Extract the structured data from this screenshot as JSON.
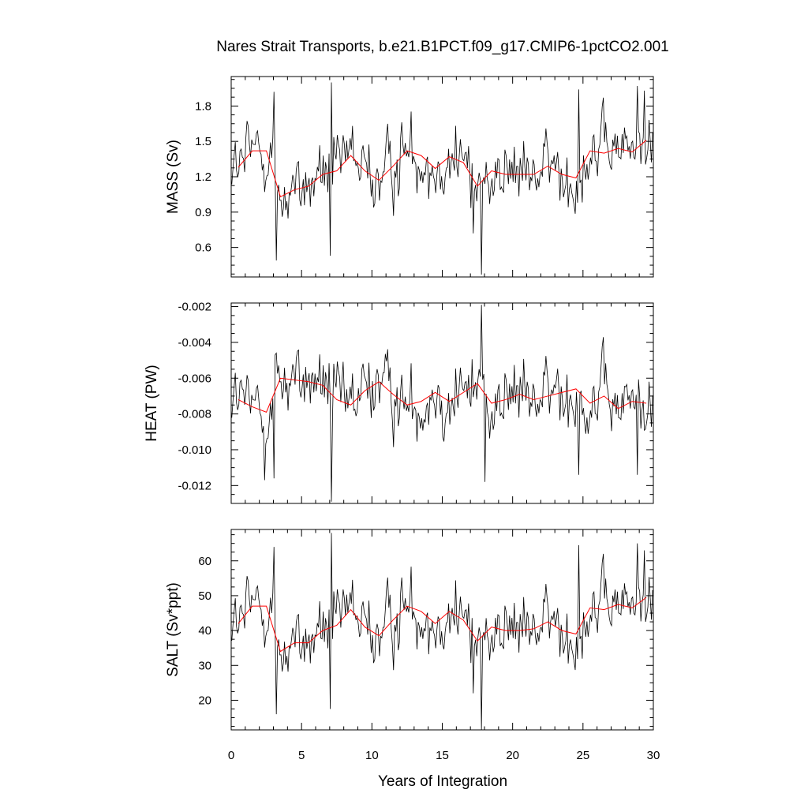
{
  "title": "Nares Strait Transports, b.e21.B1PCT.f09_g17.CMIP6-1pctCO2.001",
  "xlabel": "Years of Integration",
  "colors": {
    "monthly": "#000000",
    "annual": "#ff0000",
    "frame": "#000000"
  },
  "chart_data": [
    {
      "type": "line",
      "name": "mass",
      "ylabel": "MASS (Sv)",
      "xlim": [
        0,
        30
      ],
      "ylim": [
        0.35,
        2.05
      ],
      "xticks": [
        0,
        5,
        10,
        15,
        20,
        25,
        30
      ],
      "yticks": [
        0.6,
        0.9,
        1.2,
        1.5,
        1.8
      ],
      "ytick_labels": [
        "0.6",
        "0.9",
        "1.2",
        "1.5",
        "1.8"
      ],
      "monthly": {
        "start": 0.0417,
        "step": 0.0833,
        "count": 360,
        "mean": 1.28,
        "sd": 0.2,
        "min": 0.37,
        "max": 2.0
      },
      "spikes": [
        [
          3.2,
          0.49
        ],
        [
          3.0,
          1.92
        ],
        [
          7.1,
          2.0
        ],
        [
          7.0,
          0.53
        ],
        [
          17.8,
          0.37
        ],
        [
          17.2,
          0.72
        ],
        [
          24.7,
          1.94
        ],
        [
          28.9,
          1.97
        ],
        [
          29.4,
          1.93
        ]
      ],
      "annual_x": [
        0.5,
        1.5,
        2.5,
        3.5,
        4.5,
        5.5,
        6.5,
        7.5,
        8.5,
        9.5,
        10.5,
        11.5,
        12.5,
        13.5,
        14.5,
        15.5,
        16.5,
        17.5,
        18.5,
        19.5,
        20.5,
        21.5,
        22.5,
        23.5,
        24.5,
        25.5,
        26.5,
        27.5,
        28.5,
        29.5
      ],
      "annual_y": [
        1.28,
        1.42,
        1.42,
        1.03,
        1.09,
        1.12,
        1.22,
        1.25,
        1.38,
        1.25,
        1.17,
        1.29,
        1.42,
        1.38,
        1.27,
        1.37,
        1.32,
        1.12,
        1.25,
        1.22,
        1.22,
        1.22,
        1.29,
        1.22,
        1.19,
        1.42,
        1.4,
        1.44,
        1.41,
        1.51
      ]
    },
    {
      "type": "line",
      "name": "heat",
      "ylabel": "HEAT (PW)",
      "xlim": [
        0,
        30
      ],
      "ylim": [
        -0.013,
        -0.0018
      ],
      "xticks": [
        0,
        5,
        10,
        15,
        20,
        25,
        30
      ],
      "yticks": [
        -0.012,
        -0.01,
        -0.008,
        -0.006,
        -0.004,
        -0.002
      ],
      "ytick_labels": [
        "-0.012",
        "-0.010",
        "-0.008",
        "-0.006",
        "-0.004",
        "-0.002"
      ],
      "monthly": {
        "start": 0.0417,
        "step": 0.0833,
        "count": 360,
        "mean": -0.0071,
        "sd": 0.0014,
        "min": -0.0129,
        "max": -0.0019
      },
      "spikes": [
        [
          7.1,
          -0.0129
        ],
        [
          17.8,
          -0.0019
        ],
        [
          3.0,
          -0.0116
        ],
        [
          2.4,
          -0.0117
        ],
        [
          24.7,
          -0.0114
        ],
        [
          28.9,
          -0.0114
        ],
        [
          18.0,
          -0.0118
        ]
      ],
      "annual_x": [
        0.5,
        1.5,
        2.5,
        3.5,
        4.5,
        5.5,
        6.5,
        7.5,
        8.5,
        9.5,
        10.5,
        11.5,
        12.5,
        13.5,
        14.5,
        15.5,
        16.5,
        17.5,
        18.5,
        19.5,
        20.5,
        21.5,
        22.5,
        23.5,
        24.5,
        25.5,
        26.5,
        27.5,
        28.5,
        29.5
      ],
      "annual_y": [
        -0.0072,
        -0.0076,
        -0.0079,
        -0.006,
        -0.0061,
        -0.0062,
        -0.0064,
        -0.0072,
        -0.0075,
        -0.0067,
        -0.0062,
        -0.0069,
        -0.0075,
        -0.0073,
        -0.0068,
        -0.0073,
        -0.0068,
        -0.0063,
        -0.0074,
        -0.0072,
        -0.0069,
        -0.0072,
        -0.007,
        -0.0068,
        -0.0066,
        -0.0074,
        -0.007,
        -0.0077,
        -0.0073,
        -0.0074
      ]
    },
    {
      "type": "line",
      "name": "salt",
      "ylabel": "SALT (Sv*ppt)",
      "xlim": [
        0,
        30
      ],
      "ylim": [
        11.5,
        69
      ],
      "xticks": [
        0,
        5,
        10,
        15,
        20,
        25,
        30
      ],
      "yticks": [
        20,
        30,
        40,
        50,
        60
      ],
      "ytick_labels": [
        "20",
        "30",
        "40",
        "50",
        "60"
      ],
      "monthly": {
        "start": 0.0417,
        "step": 0.0833,
        "count": 360,
        "mean": 41.5,
        "sd": 6.8,
        "min": 11.5,
        "max": 68
      },
      "spikes": [
        [
          3.2,
          16.0
        ],
        [
          3.0,
          64.0
        ],
        [
          7.1,
          68.0
        ],
        [
          7.0,
          17.5
        ],
        [
          17.8,
          11.5
        ],
        [
          17.2,
          22.0
        ],
        [
          24.7,
          64.5
        ],
        [
          28.9,
          65.0
        ],
        [
          29.4,
          63.0
        ]
      ],
      "annual_x": [
        0.5,
        1.5,
        2.5,
        3.5,
        4.5,
        5.5,
        6.5,
        7.5,
        8.5,
        9.5,
        10.5,
        11.5,
        12.5,
        13.5,
        14.5,
        15.5,
        16.5,
        17.5,
        18.5,
        19.5,
        20.5,
        21.5,
        22.5,
        23.5,
        24.5,
        25.5,
        26.5,
        27.5,
        28.5,
        29.5
      ],
      "annual_y": [
        42.0,
        47.0,
        47.0,
        34.0,
        36.5,
        36.5,
        40.0,
        41.5,
        46.0,
        41.0,
        38.5,
        43.0,
        47.0,
        45.5,
        42.0,
        45.5,
        43.0,
        37.0,
        41.0,
        40.0,
        40.0,
        40.5,
        42.5,
        40.0,
        39.0,
        46.5,
        46.0,
        47.5,
        46.5,
        49.5
      ]
    }
  ]
}
